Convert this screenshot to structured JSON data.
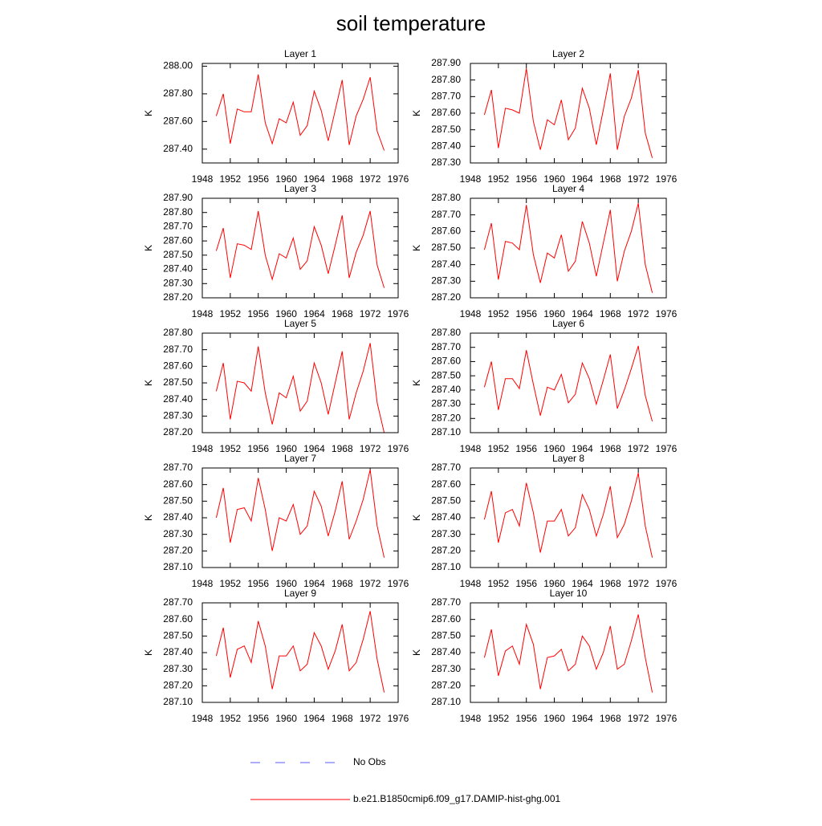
{
  "title": "soil temperature",
  "legend": [
    {
      "name": "No Obs",
      "color": "#5a5aff",
      "dash": true
    },
    {
      "name": "b.e21.B1850cmip6.f09_g17.DAMIP-hist-ghg.001",
      "color": "#ff0000",
      "dash": false
    }
  ],
  "chart_data": [
    {
      "type": "line",
      "title": "Layer 1",
      "ylabel": "K",
      "color": "#ff0000",
      "x": [
        1950,
        1951,
        1952,
        1953,
        1954,
        1955,
        1956,
        1957,
        1958,
        1959,
        1960,
        1961,
        1962,
        1963,
        1964,
        1965,
        1966,
        1967,
        1968,
        1969,
        1970,
        1971,
        1972,
        1973,
        1974
      ],
      "values": [
        287.64,
        287.8,
        287.44,
        287.69,
        287.67,
        287.67,
        287.94,
        287.59,
        287.44,
        287.62,
        287.59,
        287.74,
        287.5,
        287.57,
        287.82,
        287.68,
        287.46,
        287.68,
        287.9,
        287.43,
        287.64,
        287.76,
        287.92,
        287.53,
        287.39
      ],
      "xlim": [
        1948,
        1976
      ],
      "xticks": [
        1948,
        1952,
        1956,
        1960,
        1964,
        1968,
        1972,
        1976
      ],
      "ylim": [
        287.3,
        288.02
      ],
      "yticks": [
        {
          "value": 287.4,
          "label": "287.40"
        },
        {
          "value": 287.6,
          "label": "287.60"
        },
        {
          "value": 287.8,
          "label": "287.80"
        },
        {
          "value": 288.0,
          "label": "288.00"
        }
      ]
    },
    {
      "type": "line",
      "title": "Layer 2",
      "ylabel": "K",
      "color": "#ff0000",
      "x": [
        1950,
        1951,
        1952,
        1953,
        1954,
        1955,
        1956,
        1957,
        1958,
        1959,
        1960,
        1961,
        1962,
        1963,
        1964,
        1965,
        1966,
        1967,
        1968,
        1969,
        1970,
        1971,
        1972,
        1973,
        1974
      ],
      "values": [
        287.59,
        287.74,
        287.39,
        287.63,
        287.62,
        287.6,
        287.87,
        287.55,
        287.38,
        287.56,
        287.53,
        287.68,
        287.44,
        287.51,
        287.75,
        287.63,
        287.41,
        287.62,
        287.84,
        287.38,
        287.58,
        287.69,
        287.86,
        287.48,
        287.33
      ],
      "xlim": [
        1948,
        1976
      ],
      "xticks": [
        1948,
        1952,
        1956,
        1960,
        1964,
        1968,
        1972,
        1976
      ],
      "ylim": [
        287.3,
        287.9
      ],
      "yticks": [
        {
          "value": 287.3,
          "label": "287.30"
        },
        {
          "value": 287.4,
          "label": "287.40"
        },
        {
          "value": 287.5,
          "label": "287.50"
        },
        {
          "value": 287.6,
          "label": "287.60"
        },
        {
          "value": 287.7,
          "label": "287.70"
        },
        {
          "value": 287.8,
          "label": "287.80"
        },
        {
          "value": 287.9,
          "label": "287.90"
        }
      ]
    },
    {
      "type": "line",
      "title": "Layer 3",
      "ylabel": "K",
      "color": "#ff0000",
      "x": [
        1950,
        1951,
        1952,
        1953,
        1954,
        1955,
        1956,
        1957,
        1958,
        1959,
        1960,
        1961,
        1962,
        1963,
        1964,
        1965,
        1966,
        1967,
        1968,
        1969,
        1970,
        1971,
        1972,
        1973,
        1974
      ],
      "values": [
        287.53,
        287.69,
        287.34,
        287.58,
        287.57,
        287.54,
        287.81,
        287.5,
        287.33,
        287.51,
        287.48,
        287.62,
        287.4,
        287.46,
        287.7,
        287.57,
        287.37,
        287.57,
        287.78,
        287.34,
        287.52,
        287.64,
        287.81,
        287.43,
        287.27
      ],
      "xlim": [
        1948,
        1976
      ],
      "xticks": [
        1948,
        1952,
        1956,
        1960,
        1964,
        1968,
        1972,
        1976
      ],
      "ylim": [
        287.2,
        287.9
      ],
      "yticks": [
        {
          "value": 287.2,
          "label": "287.20"
        },
        {
          "value": 287.3,
          "label": "287.30"
        },
        {
          "value": 287.4,
          "label": "287.40"
        },
        {
          "value": 287.5,
          "label": "287.50"
        },
        {
          "value": 287.6,
          "label": "287.60"
        },
        {
          "value": 287.7,
          "label": "287.70"
        },
        {
          "value": 287.8,
          "label": "287.80"
        },
        {
          "value": 287.9,
          "label": "287.90"
        }
      ]
    },
    {
      "type": "line",
      "title": "Layer 4",
      "ylabel": "K",
      "color": "#ff0000",
      "x": [
        1950,
        1951,
        1952,
        1953,
        1954,
        1955,
        1956,
        1957,
        1958,
        1959,
        1960,
        1961,
        1962,
        1963,
        1964,
        1965,
        1966,
        1967,
        1968,
        1969,
        1970,
        1971,
        1972,
        1973,
        1974
      ],
      "values": [
        287.49,
        287.65,
        287.31,
        287.54,
        287.53,
        287.49,
        287.76,
        287.46,
        287.29,
        287.47,
        287.44,
        287.58,
        287.36,
        287.42,
        287.66,
        287.53,
        287.33,
        287.53,
        287.73,
        287.3,
        287.48,
        287.6,
        287.77,
        287.4,
        287.23
      ],
      "xlim": [
        1948,
        1976
      ],
      "xticks": [
        1948,
        1952,
        1956,
        1960,
        1964,
        1968,
        1972,
        1976
      ],
      "ylim": [
        287.2,
        287.8
      ],
      "yticks": [
        {
          "value": 287.2,
          "label": "287.20"
        },
        {
          "value": 287.3,
          "label": "287.30"
        },
        {
          "value": 287.4,
          "label": "287.40"
        },
        {
          "value": 287.5,
          "label": "287.50"
        },
        {
          "value": 287.6,
          "label": "287.60"
        },
        {
          "value": 287.7,
          "label": "287.70"
        },
        {
          "value": 287.8,
          "label": "287.80"
        }
      ]
    },
    {
      "type": "line",
      "title": "Layer 5",
      "ylabel": "K",
      "color": "#ff0000",
      "x": [
        1950,
        1951,
        1952,
        1953,
        1954,
        1955,
        1956,
        1957,
        1958,
        1959,
        1960,
        1961,
        1962,
        1963,
        1964,
        1965,
        1966,
        1967,
        1968,
        1969,
        1970,
        1971,
        1972,
        1973,
        1974
      ],
      "values": [
        287.45,
        287.62,
        287.28,
        287.51,
        287.5,
        287.45,
        287.72,
        287.44,
        287.25,
        287.44,
        287.41,
        287.54,
        287.33,
        287.39,
        287.62,
        287.5,
        287.31,
        287.5,
        287.69,
        287.28,
        287.44,
        287.57,
        287.74,
        287.38,
        287.2
      ],
      "xlim": [
        1948,
        1976
      ],
      "xticks": [
        1948,
        1952,
        1956,
        1960,
        1964,
        1968,
        1972,
        1976
      ],
      "ylim": [
        287.2,
        287.8
      ],
      "yticks": [
        {
          "value": 287.2,
          "label": "287.20"
        },
        {
          "value": 287.3,
          "label": "287.30"
        },
        {
          "value": 287.4,
          "label": "287.40"
        },
        {
          "value": 287.5,
          "label": "287.50"
        },
        {
          "value": 287.6,
          "label": "287.60"
        },
        {
          "value": 287.7,
          "label": "287.70"
        },
        {
          "value": 287.8,
          "label": "287.80"
        }
      ]
    },
    {
      "type": "line",
      "title": "Layer 6",
      "ylabel": "K",
      "color": "#ff0000",
      "x": [
        1950,
        1951,
        1952,
        1953,
        1954,
        1955,
        1956,
        1957,
        1958,
        1959,
        1960,
        1961,
        1962,
        1963,
        1964,
        1965,
        1966,
        1967,
        1968,
        1969,
        1970,
        1971,
        1972,
        1973,
        1974
      ],
      "values": [
        287.42,
        287.6,
        287.26,
        287.48,
        287.48,
        287.41,
        287.68,
        287.44,
        287.22,
        287.42,
        287.4,
        287.51,
        287.31,
        287.37,
        287.59,
        287.48,
        287.3,
        287.47,
        287.65,
        287.27,
        287.4,
        287.55,
        287.71,
        287.36,
        287.18
      ],
      "xlim": [
        1948,
        1976
      ],
      "xticks": [
        1948,
        1952,
        1956,
        1960,
        1964,
        1968,
        1972,
        1976
      ],
      "ylim": [
        287.1,
        287.8
      ],
      "yticks": [
        {
          "value": 287.1,
          "label": "287.10"
        },
        {
          "value": 287.2,
          "label": "287.20"
        },
        {
          "value": 287.3,
          "label": "287.30"
        },
        {
          "value": 287.4,
          "label": "287.40"
        },
        {
          "value": 287.5,
          "label": "287.50"
        },
        {
          "value": 287.6,
          "label": "287.60"
        },
        {
          "value": 287.7,
          "label": "287.70"
        },
        {
          "value": 287.8,
          "label": "287.80"
        }
      ]
    },
    {
      "type": "line",
      "title": "Layer 7",
      "ylabel": "K",
      "color": "#ff0000",
      "x": [
        1950,
        1951,
        1952,
        1953,
        1954,
        1955,
        1956,
        1957,
        1958,
        1959,
        1960,
        1961,
        1962,
        1963,
        1964,
        1965,
        1966,
        1967,
        1968,
        1969,
        1970,
        1971,
        1972,
        1973,
        1974
      ],
      "values": [
        287.4,
        287.58,
        287.25,
        287.45,
        287.46,
        287.38,
        287.64,
        287.45,
        287.2,
        287.4,
        287.38,
        287.48,
        287.3,
        287.35,
        287.56,
        287.47,
        287.29,
        287.44,
        287.62,
        287.27,
        287.38,
        287.51,
        287.69,
        287.35,
        287.16
      ],
      "xlim": [
        1948,
        1976
      ],
      "xticks": [
        1948,
        1952,
        1956,
        1960,
        1964,
        1968,
        1972,
        1976
      ],
      "ylim": [
        287.1,
        287.7
      ],
      "yticks": [
        {
          "value": 287.1,
          "label": "287.10"
        },
        {
          "value": 287.2,
          "label": "287.20"
        },
        {
          "value": 287.3,
          "label": "287.30"
        },
        {
          "value": 287.4,
          "label": "287.40"
        },
        {
          "value": 287.5,
          "label": "287.50"
        },
        {
          "value": 287.6,
          "label": "287.60"
        },
        {
          "value": 287.7,
          "label": "287.70"
        }
      ]
    },
    {
      "type": "line",
      "title": "Layer 8",
      "ylabel": "K",
      "color": "#ff0000",
      "x": [
        1950,
        1951,
        1952,
        1953,
        1954,
        1955,
        1956,
        1957,
        1958,
        1959,
        1960,
        1961,
        1962,
        1963,
        1964,
        1965,
        1966,
        1967,
        1968,
        1969,
        1970,
        1971,
        1972,
        1973,
        1974
      ],
      "values": [
        287.39,
        287.56,
        287.25,
        287.43,
        287.45,
        287.35,
        287.61,
        287.43,
        287.19,
        287.38,
        287.38,
        287.45,
        287.29,
        287.34,
        287.54,
        287.45,
        287.29,
        287.42,
        287.59,
        287.28,
        287.36,
        287.5,
        287.67,
        287.35,
        287.16
      ],
      "xlim": [
        1948,
        1976
      ],
      "xticks": [
        1948,
        1952,
        1956,
        1960,
        1964,
        1968,
        1972,
        1976
      ],
      "ylim": [
        287.1,
        287.7
      ],
      "yticks": [
        {
          "value": 287.1,
          "label": "287.10"
        },
        {
          "value": 287.2,
          "label": "287.20"
        },
        {
          "value": 287.3,
          "label": "287.30"
        },
        {
          "value": 287.4,
          "label": "287.40"
        },
        {
          "value": 287.5,
          "label": "287.50"
        },
        {
          "value": 287.6,
          "label": "287.60"
        },
        {
          "value": 287.7,
          "label": "287.70"
        }
      ]
    },
    {
      "type": "line",
      "title": "Layer 9",
      "ylabel": "K",
      "color": "#ff0000",
      "x": [
        1950,
        1951,
        1952,
        1953,
        1954,
        1955,
        1956,
        1957,
        1958,
        1959,
        1960,
        1961,
        1962,
        1963,
        1964,
        1965,
        1966,
        1967,
        1968,
        1969,
        1970,
        1971,
        1972,
        1973,
        1974
      ],
      "values": [
        287.38,
        287.55,
        287.25,
        287.42,
        287.44,
        287.34,
        287.59,
        287.44,
        287.18,
        287.38,
        287.38,
        287.44,
        287.29,
        287.33,
        287.52,
        287.44,
        287.3,
        287.41,
        287.57,
        287.29,
        287.34,
        287.48,
        287.65,
        287.36,
        287.16
      ],
      "xlim": [
        1948,
        1976
      ],
      "xticks": [
        1948,
        1952,
        1956,
        1960,
        1964,
        1968,
        1972,
        1976
      ],
      "ylim": [
        287.1,
        287.7
      ],
      "yticks": [
        {
          "value": 287.1,
          "label": "287.10"
        },
        {
          "value": 287.2,
          "label": "287.20"
        },
        {
          "value": 287.3,
          "label": "287.30"
        },
        {
          "value": 287.4,
          "label": "287.40"
        },
        {
          "value": 287.5,
          "label": "287.50"
        },
        {
          "value": 287.6,
          "label": "287.60"
        },
        {
          "value": 287.7,
          "label": "287.70"
        }
      ]
    },
    {
      "type": "line",
      "title": "Layer 10",
      "ylabel": "K",
      "color": "#ff0000",
      "x": [
        1950,
        1951,
        1952,
        1953,
        1954,
        1955,
        1956,
        1957,
        1958,
        1959,
        1960,
        1961,
        1962,
        1963,
        1964,
        1965,
        1966,
        1967,
        1968,
        1969,
        1970,
        1971,
        1972,
        1973,
        1974
      ],
      "values": [
        287.37,
        287.54,
        287.26,
        287.41,
        287.44,
        287.33,
        287.57,
        287.45,
        287.18,
        287.37,
        287.38,
        287.42,
        287.29,
        287.33,
        287.5,
        287.44,
        287.3,
        287.4,
        287.56,
        287.3,
        287.33,
        287.47,
        287.63,
        287.37,
        287.16
      ],
      "xlim": [
        1948,
        1976
      ],
      "xticks": [
        1948,
        1952,
        1956,
        1960,
        1964,
        1968,
        1972,
        1976
      ],
      "ylim": [
        287.1,
        287.7
      ],
      "yticks": [
        {
          "value": 287.1,
          "label": "287.10"
        },
        {
          "value": 287.2,
          "label": "287.20"
        },
        {
          "value": 287.3,
          "label": "287.30"
        },
        {
          "value": 287.4,
          "label": "287.40"
        },
        {
          "value": 287.5,
          "label": "287.50"
        },
        {
          "value": 287.6,
          "label": "287.60"
        },
        {
          "value": 287.7,
          "label": "287.70"
        }
      ]
    }
  ]
}
